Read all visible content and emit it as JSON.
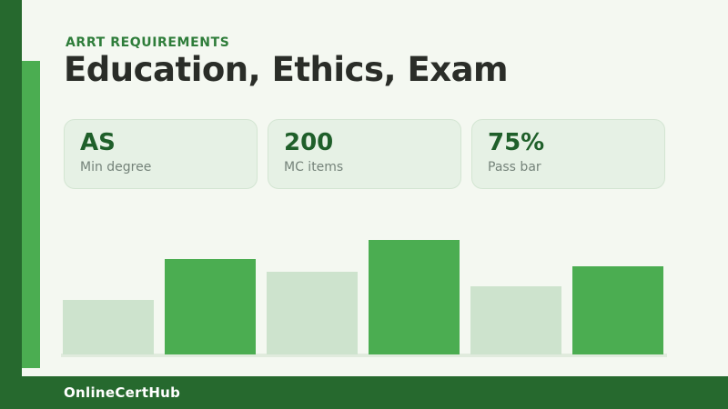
{
  "header": {
    "eyebrow": "ARRT REQUIREMENTS",
    "title": "Education, Ethics, Exam"
  },
  "stats": [
    {
      "value": "AS",
      "label": "Min degree"
    },
    {
      "value": "200",
      "label": "MC items"
    },
    {
      "value": "75%",
      "label": "Pass bar"
    }
  ],
  "footer": {
    "brand": "OnlineCertHub"
  },
  "colors": {
    "page_bg": "#f4f8f1",
    "dark_green": "#26692e",
    "medium_green": "#4bad51",
    "light_green": "#cde3cd",
    "card_bg": "#e6f1e5",
    "card_border": "#d3e5d2",
    "baseline_green": "#e0ebdd",
    "eyebrow_green": "#2e7d3a",
    "stat_green": "#1f5f2a",
    "label_gray": "#75837a",
    "title_dark": "#2a2d28"
  },
  "chart_data": {
    "type": "bar",
    "categories": [
      "bar1",
      "bar2",
      "bar3",
      "bar4",
      "bar5",
      "bar6"
    ],
    "values": [
      60,
      105,
      91,
      126,
      75,
      97
    ],
    "value_unit": "relative-height-px",
    "bar_styles": [
      "light",
      "medium",
      "light",
      "medium",
      "light",
      "medium"
    ],
    "title": "",
    "xlabel": "",
    "ylabel": "",
    "ylim": [
      0,
      127
    ],
    "grid": false,
    "legend": false,
    "notes": "decorative unlabeled bar chart alternating light/medium green, flat baseline"
  }
}
